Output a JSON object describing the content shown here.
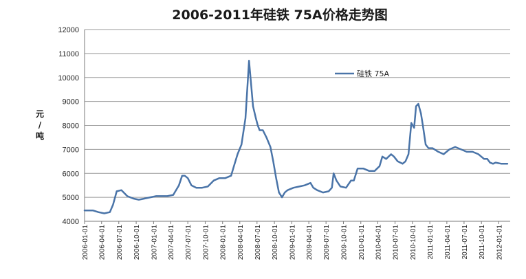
{
  "chart_data": {
    "type": "line",
    "title": "2006-2011年硅铁 75A价格走势图",
    "ylabel": "元/吨",
    "ylabel_chars": [
      "元",
      "/",
      "吨"
    ],
    "ylim": [
      4000,
      12000
    ],
    "yticks": [
      "4000",
      "5000",
      "6000",
      "7000",
      "8000",
      "9000",
      "10000",
      "11000",
      "12000"
    ],
    "xlim": [
      "2006-01-01",
      "2012-03-01"
    ],
    "xticks": [
      "2006-01-01",
      "2006-04-01",
      "2006-07-01",
      "2006-10-01",
      "2007-01-01",
      "2007-04-01",
      "2007-07-01",
      "2007-10-01",
      "2008-01-01",
      "2008-04-01",
      "2008-07-01",
      "2008-10-01",
      "2009-01-01",
      "2009-04-01",
      "2009-07-01",
      "2009-10-01",
      "2010-01-01",
      "2010-04-01",
      "2010-07-01",
      "2010-10-01",
      "2011-01-01",
      "2011-04-01",
      "2011-07-01",
      "2011-10-01",
      "2012-01-01"
    ],
    "grid": true,
    "legend_position": "top-right",
    "line_color": "#4a74a8",
    "series": [
      {
        "name": "硅铁 75A",
        "x": [
          "2006-01-01",
          "2006-02-15",
          "2006-03-15",
          "2006-04-15",
          "2006-05-15",
          "2006-06-01",
          "2006-06-20",
          "2006-07-15",
          "2006-08-15",
          "2006-09-15",
          "2006-10-15",
          "2006-11-15",
          "2006-12-15",
          "2007-01-15",
          "2007-02-15",
          "2007-03-15",
          "2007-04-15",
          "2007-05-15",
          "2007-06-01",
          "2007-06-15",
          "2007-07-01",
          "2007-07-20",
          "2007-08-15",
          "2007-09-15",
          "2007-10-15",
          "2007-11-15",
          "2007-12-15",
          "2008-01-15",
          "2008-02-15",
          "2008-03-01",
          "2008-03-20",
          "2008-04-10",
          "2008-05-01",
          "2008-05-20",
          "2008-06-10",
          "2008-06-25",
          "2008-07-05",
          "2008-07-15",
          "2008-08-01",
          "2008-08-20",
          "2008-09-10",
          "2008-09-25",
          "2008-10-10",
          "2008-10-25",
          "2008-11-10",
          "2008-11-25",
          "2008-12-10",
          "2009-01-10",
          "2009-02-10",
          "2009-03-10",
          "2009-04-10",
          "2009-04-25",
          "2009-05-15",
          "2009-06-15",
          "2009-07-15",
          "2009-08-01",
          "2009-08-10",
          "2009-08-25",
          "2009-09-15",
          "2009-10-15",
          "2009-11-10",
          "2009-11-25",
          "2009-12-15",
          "2010-01-15",
          "2010-02-15",
          "2010-03-15",
          "2010-04-10",
          "2010-04-25",
          "2010-05-15",
          "2010-06-10",
          "2010-06-25",
          "2010-07-15",
          "2010-08-10",
          "2010-08-25",
          "2010-09-10",
          "2010-09-25",
          "2010-10-10",
          "2010-10-20",
          "2010-11-01",
          "2010-11-15",
          "2010-11-25",
          "2010-12-10",
          "2010-12-25",
          "2011-01-15",
          "2011-02-15",
          "2011-03-15",
          "2011-04-15",
          "2011-05-15",
          "2011-06-15",
          "2011-07-15",
          "2011-08-15",
          "2011-09-15",
          "2011-10-15",
          "2011-11-01",
          "2011-11-15",
          "2011-12-01",
          "2011-12-15",
          "2012-01-15",
          "2012-02-15"
        ],
        "y": [
          4450,
          4450,
          4380,
          4330,
          4380,
          4700,
          5250,
          5300,
          5050,
          4950,
          4900,
          4950,
          5000,
          5050,
          5050,
          5050,
          5100,
          5500,
          5900,
          5900,
          5800,
          5500,
          5400,
          5400,
          5450,
          5700,
          5800,
          5800,
          5900,
          6300,
          6800,
          7200,
          8300,
          10700,
          8800,
          8300,
          8000,
          7800,
          7800,
          7500,
          7100,
          6500,
          5800,
          5200,
          5000,
          5200,
          5300,
          5400,
          5450,
          5500,
          5600,
          5400,
          5300,
          5200,
          5250,
          5400,
          6000,
          5700,
          5450,
          5400,
          5700,
          5700,
          6200,
          6200,
          6100,
          6100,
          6300,
          6700,
          6600,
          6800,
          6700,
          6500,
          6400,
          6500,
          6800,
          8100,
          7900,
          8800,
          8900,
          8500,
          8000,
          7200,
          7050,
          7050,
          6900,
          6800,
          7000,
          7100,
          7000,
          6900,
          6900,
          6800,
          6600,
          6600,
          6450,
          6400,
          6450,
          6400,
          6400
        ]
      }
    ]
  }
}
